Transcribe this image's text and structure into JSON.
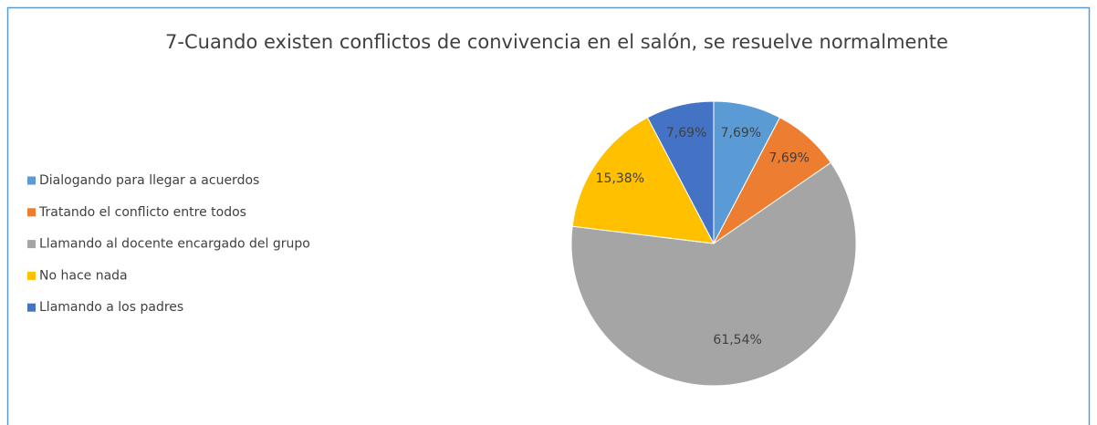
{
  "chart_data": {
    "type": "pie",
    "title": "7-Cuando existen conflictos de convivencia en el salón, se resuelve normalmente",
    "categories": [
      "Dialogando para llegar a acuerdos",
      "Tratando el conflicto entre todos",
      "Llamando al docente encargado del grupo",
      "No hace nada",
      "Llamando a los padres"
    ],
    "values": [
      7.69,
      7.69,
      61.54,
      15.38,
      7.69
    ],
    "value_labels": [
      "7,69%",
      "7,69%",
      "61,54%",
      "15,38%",
      "7,69%"
    ],
    "colors": [
      "#5b9bd5",
      "#ed7d31",
      "#a5a5a5",
      "#ffc000",
      "#4472c4"
    ],
    "legend": "left"
  }
}
